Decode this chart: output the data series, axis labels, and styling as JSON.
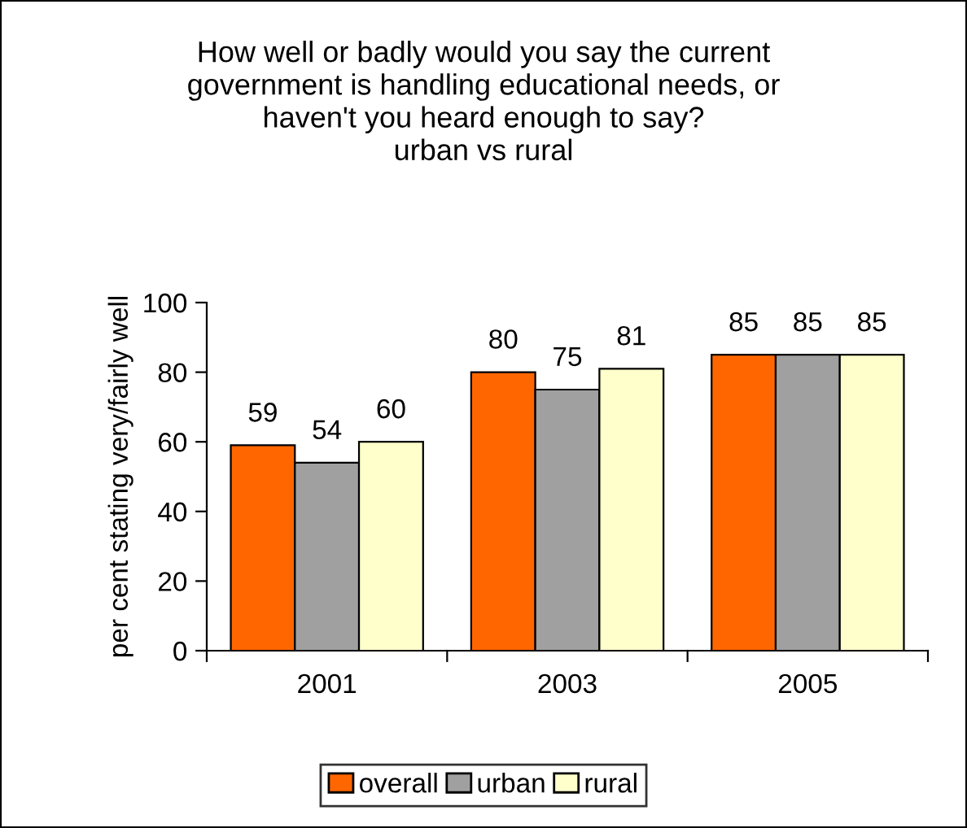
{
  "chart_data": {
    "type": "bar",
    "title": "How well or badly would you say the current\ngovernment is handling educational needs, or\nhaven't you heard enough to say?\nurban vs rural",
    "ylabel": "per cent stating very/fairly well",
    "categories": [
      "2001",
      "2003",
      "2005"
    ],
    "series": [
      {
        "name": "overall",
        "color": "#ff6600",
        "values": [
          59,
          80,
          85
        ]
      },
      {
        "name": "urban",
        "color": "#a0a0a0",
        "values": [
          54,
          75,
          85
        ]
      },
      {
        "name": "rural",
        "color": "#ffffcc",
        "values": [
          60,
          81,
          85
        ]
      }
    ],
    "ylim": [
      0,
      100
    ],
    "yticks": [
      0,
      20,
      40,
      60,
      80,
      100
    ],
    "grid": false,
    "legend": "bottom",
    "data_labels": true
  }
}
